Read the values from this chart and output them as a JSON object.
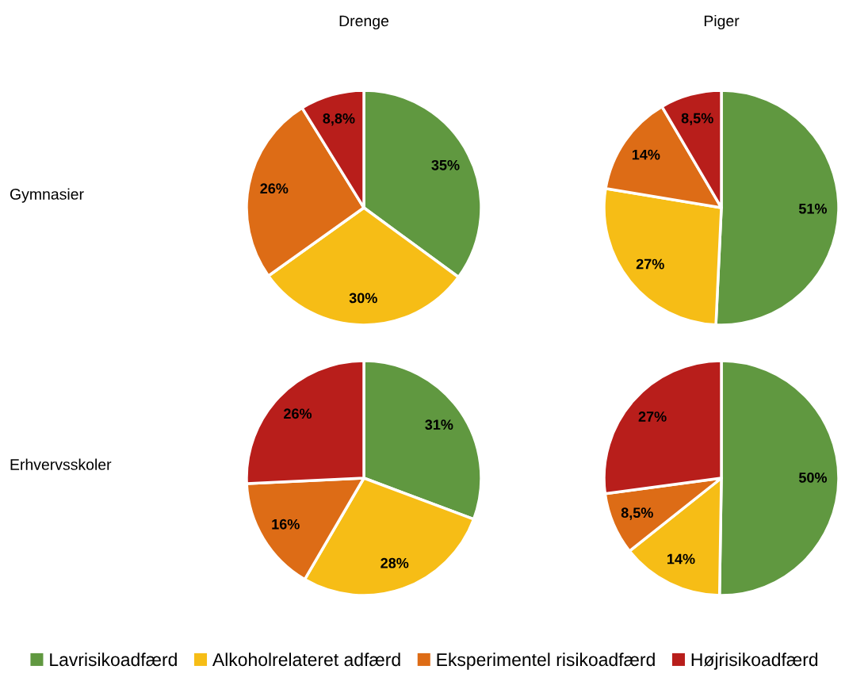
{
  "chart_data": [
    {
      "type": "pie",
      "title": "Drenge",
      "ylabel": "Gymnasier",
      "categories": [
        "Lavrisikoadfærd",
        "Alkoholrelateret adfærd",
        "Eksperimentel risikoadfærd",
        "Højrisikoadfærd"
      ],
      "values": [
        35,
        30,
        26,
        8.8
      ],
      "colors": [
        "#609840",
        "#f6bd16",
        "#dd6c16",
        "#b81e1b"
      ],
      "value_labels": [
        "35%",
        "30%",
        "26%",
        "8,8%"
      ],
      "legend": "bottom"
    },
    {
      "type": "pie",
      "title": "Piger",
      "categories": [
        null,
        null,
        null,
        null
      ],
      "values": [
        51,
        27,
        14,
        8.5
      ],
      "colors": [
        "#609840",
        "#f6bd16",
        "#dd6c16",
        "#b81e1b"
      ],
      "value_labels": [
        "51%",
        "27%",
        "14%",
        "8,5%"
      ]
    },
    {
      "type": "pie",
      "ylabel": "Erhvervsskoler",
      "categories": [
        null,
        null,
        null,
        null
      ],
      "values": [
        31,
        28,
        16,
        26
      ],
      "colors": [
        "#609840",
        "#f6bd16",
        "#dd6c16",
        "#b81e1b"
      ],
      "value_labels": [
        "31%",
        "28%",
        "16%",
        "26%"
      ]
    },
    {
      "type": "pie",
      "categories": [
        null,
        null,
        null,
        null
      ],
      "values": [
        50,
        14,
        8.5,
        27
      ],
      "colors": [
        "#609840",
        "#f6bd16",
        "#dd6c16",
        "#b81e1b"
      ],
      "value_labels": [
        "50%",
        "14%",
        "8,5%",
        "27%"
      ]
    }
  ]
}
